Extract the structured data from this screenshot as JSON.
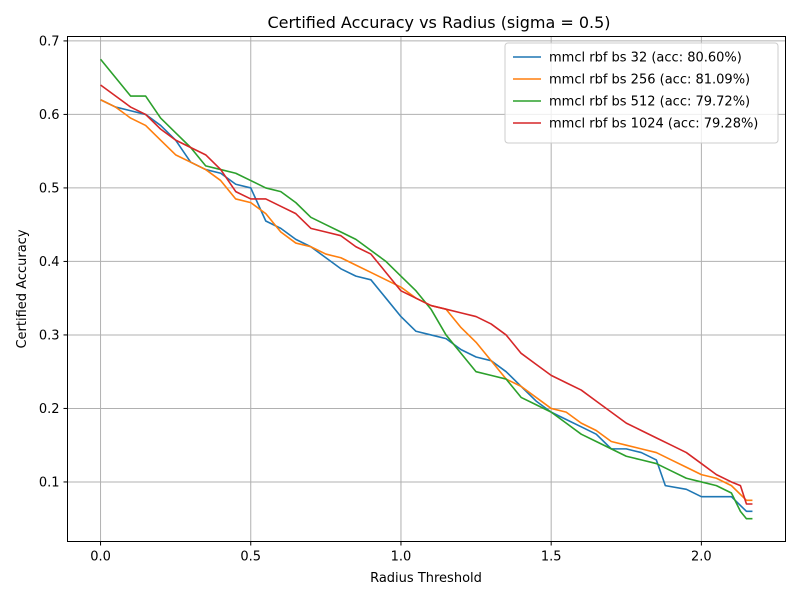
{
  "chart_data": {
    "type": "line",
    "title": "Certified Accuracy vs Radius (sigma = 0.5)",
    "xlabel": "Radius Threshold",
    "ylabel": "Certified Accuracy",
    "xlim": [
      -0.11,
      2.28
    ],
    "ylim": [
      0.019,
      0.706
    ],
    "xticks": [
      0.0,
      0.5,
      1.0,
      1.5,
      2.0
    ],
    "xtick_labels": [
      "0.0",
      "0.5",
      "1.0",
      "1.5",
      "2.0"
    ],
    "yticks": [
      0.1,
      0.2,
      0.3,
      0.4,
      0.5,
      0.6,
      0.7
    ],
    "ytick_labels": [
      "0.1",
      "0.2",
      "0.3",
      "0.4",
      "0.5",
      "0.6",
      "0.7"
    ],
    "grid": true,
    "legend_position": "top-right",
    "series": [
      {
        "name": "mmcl rbf bs 32 (acc: 80.60%)",
        "color": "#1f77b4",
        "points": [
          [
            0.0,
            0.62
          ],
          [
            0.05,
            0.61
          ],
          [
            0.1,
            0.605
          ],
          [
            0.15,
            0.6
          ],
          [
            0.2,
            0.585
          ],
          [
            0.25,
            0.565
          ],
          [
            0.3,
            0.535
          ],
          [
            0.35,
            0.525
          ],
          [
            0.4,
            0.52
          ],
          [
            0.45,
            0.505
          ],
          [
            0.5,
            0.5
          ],
          [
            0.55,
            0.455
          ],
          [
            0.6,
            0.445
          ],
          [
            0.65,
            0.43
          ],
          [
            0.7,
            0.42
          ],
          [
            0.75,
            0.405
          ],
          [
            0.8,
            0.39
          ],
          [
            0.85,
            0.38
          ],
          [
            0.9,
            0.375
          ],
          [
            0.95,
            0.35
          ],
          [
            1.0,
            0.325
          ],
          [
            1.05,
            0.305
          ],
          [
            1.1,
            0.3
          ],
          [
            1.15,
            0.295
          ],
          [
            1.2,
            0.28
          ],
          [
            1.25,
            0.27
          ],
          [
            1.3,
            0.265
          ],
          [
            1.35,
            0.25
          ],
          [
            1.4,
            0.23
          ],
          [
            1.45,
            0.21
          ],
          [
            1.5,
            0.195
          ],
          [
            1.55,
            0.185
          ],
          [
            1.6,
            0.175
          ],
          [
            1.65,
            0.165
          ],
          [
            1.7,
            0.145
          ],
          [
            1.75,
            0.145
          ],
          [
            1.8,
            0.14
          ],
          [
            1.85,
            0.13
          ],
          [
            1.88,
            0.095
          ],
          [
            1.95,
            0.09
          ],
          [
            2.0,
            0.08
          ],
          [
            2.05,
            0.08
          ],
          [
            2.1,
            0.08
          ],
          [
            2.15,
            0.06
          ],
          [
            2.17,
            0.06
          ]
        ]
      },
      {
        "name": "mmcl rbf bs 256 (acc: 81.09%)",
        "color": "#ff7f0e",
        "points": [
          [
            0.0,
            0.62
          ],
          [
            0.05,
            0.61
          ],
          [
            0.1,
            0.595
          ],
          [
            0.15,
            0.585
          ],
          [
            0.2,
            0.565
          ],
          [
            0.25,
            0.545
          ],
          [
            0.3,
            0.535
          ],
          [
            0.35,
            0.525
          ],
          [
            0.4,
            0.51
          ],
          [
            0.45,
            0.485
          ],
          [
            0.5,
            0.48
          ],
          [
            0.55,
            0.465
          ],
          [
            0.6,
            0.44
          ],
          [
            0.65,
            0.425
          ],
          [
            0.7,
            0.42
          ],
          [
            0.75,
            0.41
          ],
          [
            0.8,
            0.405
          ],
          [
            0.85,
            0.395
          ],
          [
            0.9,
            0.385
          ],
          [
            0.95,
            0.375
          ],
          [
            1.0,
            0.365
          ],
          [
            1.05,
            0.35
          ],
          [
            1.1,
            0.34
          ],
          [
            1.15,
            0.335
          ],
          [
            1.2,
            0.31
          ],
          [
            1.25,
            0.29
          ],
          [
            1.3,
            0.265
          ],
          [
            1.35,
            0.24
          ],
          [
            1.4,
            0.23
          ],
          [
            1.45,
            0.215
          ],
          [
            1.5,
            0.2
          ],
          [
            1.55,
            0.195
          ],
          [
            1.6,
            0.18
          ],
          [
            1.65,
            0.17
          ],
          [
            1.7,
            0.155
          ],
          [
            1.75,
            0.15
          ],
          [
            1.8,
            0.145
          ],
          [
            1.85,
            0.14
          ],
          [
            1.9,
            0.13
          ],
          [
            1.95,
            0.12
          ],
          [
            2.0,
            0.11
          ],
          [
            2.05,
            0.105
          ],
          [
            2.1,
            0.095
          ],
          [
            2.15,
            0.075
          ],
          [
            2.17,
            0.075
          ]
        ]
      },
      {
        "name": "mmcl rbf bs 512 (acc: 79.72%)",
        "color": "#2ca02c",
        "points": [
          [
            0.0,
            0.675
          ],
          [
            0.05,
            0.65
          ],
          [
            0.1,
            0.625
          ],
          [
            0.15,
            0.625
          ],
          [
            0.2,
            0.595
          ],
          [
            0.25,
            0.575
          ],
          [
            0.3,
            0.555
          ],
          [
            0.35,
            0.53
          ],
          [
            0.4,
            0.525
          ],
          [
            0.45,
            0.52
          ],
          [
            0.5,
            0.51
          ],
          [
            0.55,
            0.5
          ],
          [
            0.6,
            0.495
          ],
          [
            0.65,
            0.48
          ],
          [
            0.7,
            0.46
          ],
          [
            0.75,
            0.45
          ],
          [
            0.8,
            0.44
          ],
          [
            0.85,
            0.43
          ],
          [
            0.9,
            0.415
          ],
          [
            0.95,
            0.4
          ],
          [
            1.0,
            0.38
          ],
          [
            1.05,
            0.36
          ],
          [
            1.1,
            0.335
          ],
          [
            1.15,
            0.3
          ],
          [
            1.2,
            0.275
          ],
          [
            1.25,
            0.25
          ],
          [
            1.3,
            0.245
          ],
          [
            1.35,
            0.24
          ],
          [
            1.4,
            0.215
          ],
          [
            1.45,
            0.205
          ],
          [
            1.5,
            0.195
          ],
          [
            1.55,
            0.18
          ],
          [
            1.6,
            0.165
          ],
          [
            1.65,
            0.155
          ],
          [
            1.7,
            0.145
          ],
          [
            1.75,
            0.135
          ],
          [
            1.8,
            0.13
          ],
          [
            1.85,
            0.125
          ],
          [
            1.9,
            0.115
          ],
          [
            1.95,
            0.105
          ],
          [
            2.0,
            0.1
          ],
          [
            2.05,
            0.095
          ],
          [
            2.1,
            0.085
          ],
          [
            2.13,
            0.06
          ],
          [
            2.15,
            0.05
          ],
          [
            2.17,
            0.05
          ]
        ]
      },
      {
        "name": "mmcl rbf bs 1024 (acc: 79.28%)",
        "color": "#d62728",
        "points": [
          [
            0.0,
            0.64
          ],
          [
            0.05,
            0.625
          ],
          [
            0.1,
            0.61
          ],
          [
            0.15,
            0.6
          ],
          [
            0.2,
            0.58
          ],
          [
            0.25,
            0.565
          ],
          [
            0.3,
            0.555
          ],
          [
            0.35,
            0.545
          ],
          [
            0.4,
            0.525
          ],
          [
            0.45,
            0.495
          ],
          [
            0.5,
            0.485
          ],
          [
            0.55,
            0.485
          ],
          [
            0.6,
            0.475
          ],
          [
            0.65,
            0.465
          ],
          [
            0.7,
            0.445
          ],
          [
            0.75,
            0.44
          ],
          [
            0.8,
            0.435
          ],
          [
            0.85,
            0.42
          ],
          [
            0.9,
            0.41
          ],
          [
            0.95,
            0.385
          ],
          [
            1.0,
            0.36
          ],
          [
            1.05,
            0.35
          ],
          [
            1.1,
            0.34
          ],
          [
            1.15,
            0.335
          ],
          [
            1.2,
            0.33
          ],
          [
            1.25,
            0.325
          ],
          [
            1.3,
            0.315
          ],
          [
            1.35,
            0.3
          ],
          [
            1.4,
            0.275
          ],
          [
            1.45,
            0.26
          ],
          [
            1.5,
            0.245
          ],
          [
            1.55,
            0.235
          ],
          [
            1.6,
            0.225
          ],
          [
            1.65,
            0.21
          ],
          [
            1.7,
            0.195
          ],
          [
            1.75,
            0.18
          ],
          [
            1.8,
            0.17
          ],
          [
            1.85,
            0.16
          ],
          [
            1.9,
            0.15
          ],
          [
            1.95,
            0.14
          ],
          [
            2.0,
            0.125
          ],
          [
            2.05,
            0.11
          ],
          [
            2.1,
            0.1
          ],
          [
            2.13,
            0.095
          ],
          [
            2.15,
            0.07
          ],
          [
            2.17,
            0.07
          ]
        ]
      }
    ]
  }
}
